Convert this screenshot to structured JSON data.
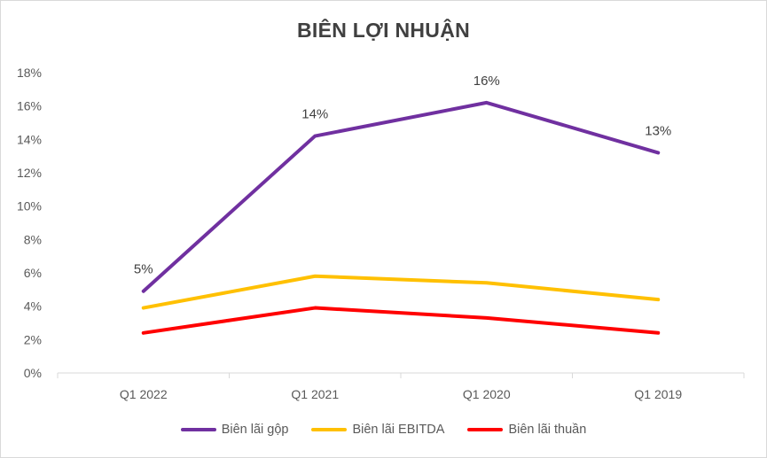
{
  "chart_data": {
    "type": "line",
    "title": "BIÊN LỢI NHUẬN",
    "categories": [
      "Q1 2022",
      "Q1 2021",
      "Q1 2020",
      "Q1 2019"
    ],
    "y_ticks": [
      "0%",
      "2%",
      "4%",
      "6%",
      "8%",
      "10%",
      "12%",
      "14%",
      "16%",
      "18%"
    ],
    "ylim": [
      0,
      18
    ],
    "grid": false,
    "legend_position": "bottom",
    "series": [
      {
        "name": "Biên lãi gộp",
        "color": "#7030A0",
        "values": [
          4.9,
          14.2,
          16.2,
          13.2
        ],
        "labels": [
          "5%",
          "14%",
          "16%",
          "13%"
        ]
      },
      {
        "name": "Biên lãi EBITDA",
        "color": "#FFC000",
        "values": [
          3.9,
          5.8,
          5.4,
          4.4
        ]
      },
      {
        "name": "Biên lãi thuần",
        "color": "#FF0000",
        "values": [
          2.4,
          3.9,
          3.3,
          2.4
        ]
      }
    ]
  }
}
